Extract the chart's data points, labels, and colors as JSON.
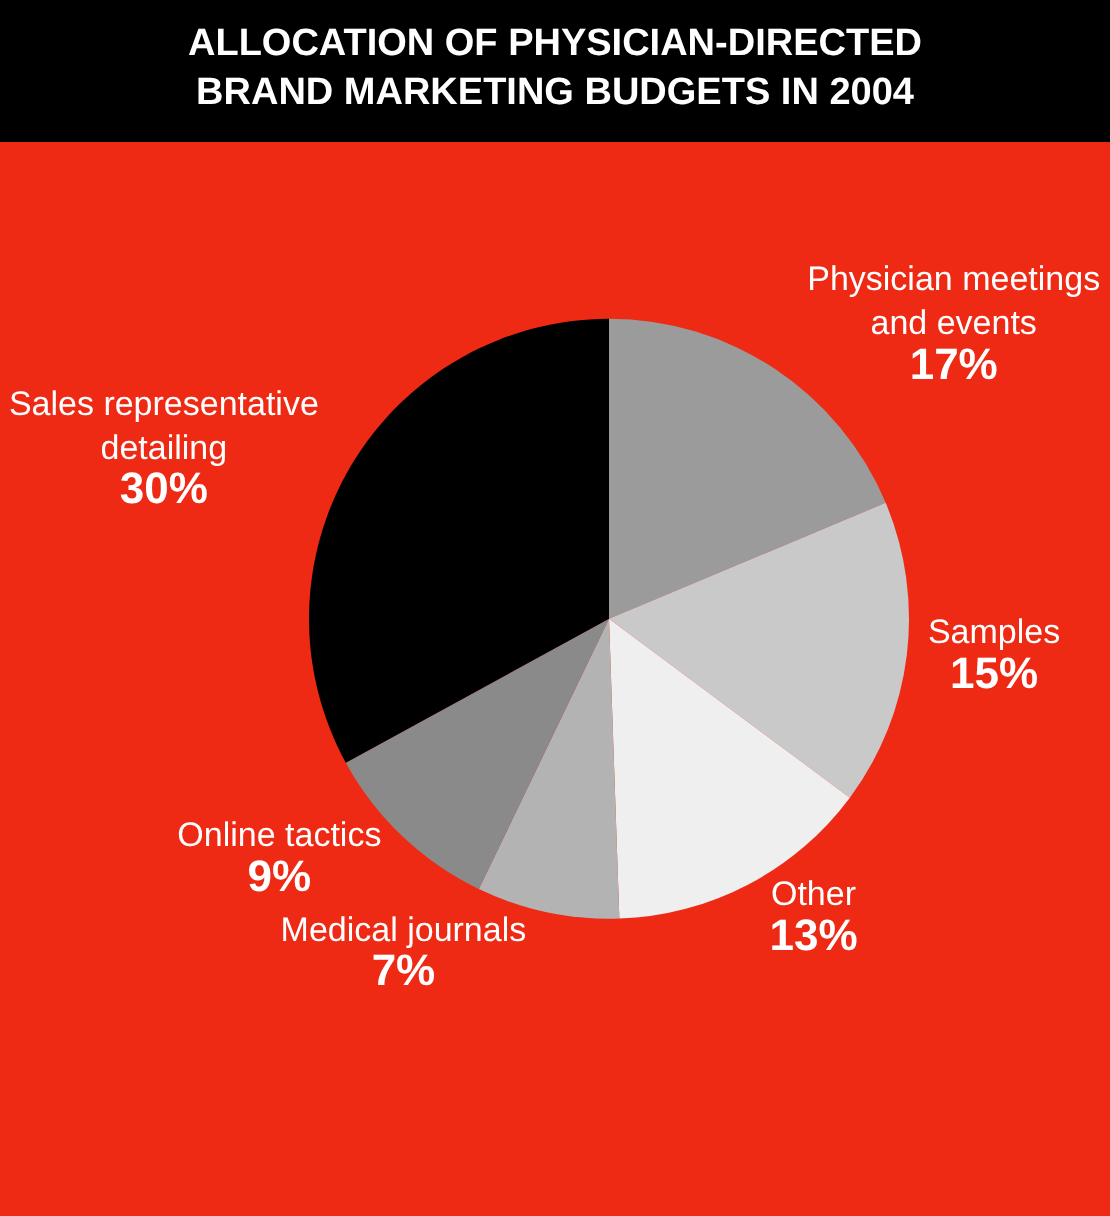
{
  "chart_data": {
    "type": "pie",
    "title": "ALLOCATION OF PHYSICIAN-DIRECTED BRAND MARKETING BUDGETS IN 2004",
    "categories": [
      "Physician meetings and events",
      "Samples",
      "Other",
      "Medical journals",
      "Online tactics",
      "Sales representative detailing"
    ],
    "values": [
      17,
      15,
      13,
      7,
      9,
      30
    ],
    "value_labels": [
      "17%",
      "15%",
      "13%",
      "7%",
      "9%",
      "30%"
    ],
    "colors": [
      "#9b9b9b",
      "#c9c9c9",
      "#efefef",
      "#b3b3b3",
      "#8a8a8a",
      "#000000"
    ],
    "legend": false
  }
}
